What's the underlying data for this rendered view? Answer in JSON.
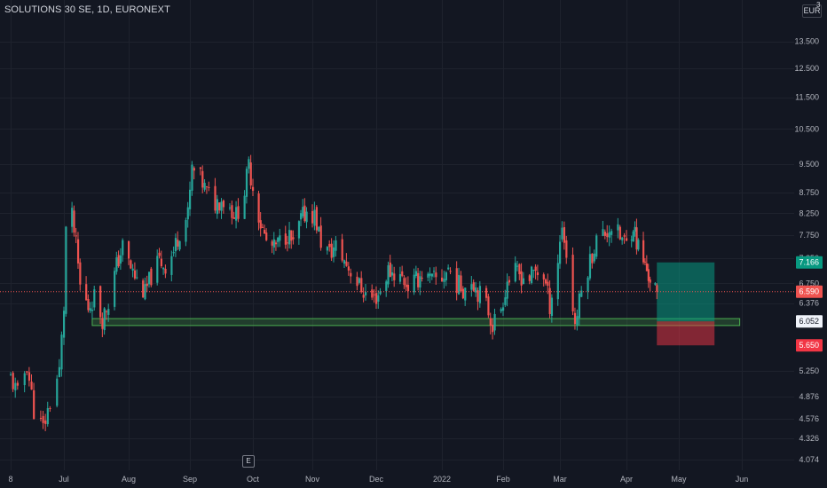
{
  "header": {
    "title": "SOLUTIONS 30 SE, 1D, EURONEXT",
    "currency": "EUR",
    "currency_index": "3"
  },
  "event_marker": "E",
  "colors": {
    "background": "#131722",
    "grid": "#1e222d",
    "up": "#26a69a",
    "down": "#ef5350",
    "axis_text": "#b2b5be",
    "zone_fill": "rgba(76,175,80,0.25)",
    "zone_border": "#4caf50",
    "target_fill": "rgba(8,153,129,0.55)",
    "stop_fill": "rgba(242,54,69,0.5)"
  },
  "chart_data": {
    "type": "candlestick",
    "title": "SOLUTIONS 30 SE, 1D, EURONEXT",
    "y_scale": "log",
    "ylim": [
      3.95,
      15.2
    ],
    "grid": true,
    "y_ticks": [
      "13.500",
      "12.500",
      "11.500",
      "10.500",
      "9.500",
      "8.750",
      "8.250",
      "7.750",
      "7.250",
      "6.750",
      "6.376",
      "5.250",
      "4.876",
      "4.576",
      "4.326",
      "4.074"
    ],
    "x_ticks": [
      "8",
      "Jul",
      "Aug",
      "Sep",
      "Oct",
      "Nov",
      "Dec",
      "2022",
      "Feb",
      "Mar",
      "Apr",
      "May",
      "Jun"
    ],
    "x_dates": [
      "2021-06-08",
      "2021-07-01",
      "2021-08-02",
      "2021-09-01",
      "2021-10-01",
      "2021-11-01",
      "2021-12-01",
      "2022-01-03",
      "2022-02-01",
      "2022-03-01",
      "2022-04-01",
      "2022-05-02",
      "2022-06-01"
    ],
    "price_labels": [
      {
        "label": "7.166",
        "value": 7.166,
        "kind": "target"
      },
      {
        "label": "6.590",
        "value": 6.59,
        "kind": "last"
      },
      {
        "label": "6.052",
        "value": 6.052,
        "kind": "zone"
      },
      {
        "label": "5.650",
        "value": 5.65,
        "kind": "stop"
      }
    ],
    "close_series": [
      [
        "2021-06-08",
        5.15
      ],
      [
        "2021-06-11",
        4.9
      ],
      [
        "2021-06-15",
        5.35
      ],
      [
        "2021-06-18",
        4.7
      ],
      [
        "2021-06-22",
        4.45
      ],
      [
        "2021-06-25",
        4.8
      ],
      [
        "2021-06-29",
        5.25
      ],
      [
        "2021-07-01",
        6.3
      ],
      [
        "2021-07-02",
        7.9
      ],
      [
        "2021-07-05",
        8.15
      ],
      [
        "2021-07-07",
        7.5
      ],
      [
        "2021-07-09",
        6.7
      ],
      [
        "2021-07-13",
        6.3
      ],
      [
        "2021-07-16",
        6.5
      ],
      [
        "2021-07-20",
        6.1
      ],
      [
        "2021-07-23",
        6.4
      ],
      [
        "2021-07-27",
        7.1
      ],
      [
        "2021-07-30",
        7.5
      ],
      [
        "2021-08-03",
        7.05
      ],
      [
        "2021-08-06",
        6.8
      ],
      [
        "2021-08-10",
        6.55
      ],
      [
        "2021-08-13",
        6.9
      ],
      [
        "2021-08-17",
        7.2
      ],
      [
        "2021-08-20",
        7.1
      ],
      [
        "2021-08-24",
        7.4
      ],
      [
        "2021-08-27",
        7.85
      ],
      [
        "2021-08-31",
        8.2
      ],
      [
        "2021-09-02",
        9.35
      ],
      [
        "2021-09-06",
        9.1
      ],
      [
        "2021-09-09",
        8.75
      ],
      [
        "2021-09-13",
        8.5
      ],
      [
        "2021-09-16",
        8.6
      ],
      [
        "2021-09-20",
        8.4
      ],
      [
        "2021-09-23",
        8.2
      ],
      [
        "2021-09-27",
        8.8
      ],
      [
        "2021-09-29",
        9.45
      ],
      [
        "2021-10-01",
        8.9
      ],
      [
        "2021-10-05",
        8.0
      ],
      [
        "2021-10-08",
        7.6
      ],
      [
        "2021-10-12",
        7.45
      ],
      [
        "2021-10-15",
        7.6
      ],
      [
        "2021-10-19",
        7.8
      ],
      [
        "2021-10-22",
        7.5
      ],
      [
        "2021-10-26",
        8.1
      ],
      [
        "2021-10-29",
        8.3
      ],
      [
        "2021-11-02",
        8.2
      ],
      [
        "2021-11-05",
        7.6
      ],
      [
        "2021-11-09",
        7.35
      ],
      [
        "2021-11-12",
        7.5
      ],
      [
        "2021-11-16",
        7.2
      ],
      [
        "2021-11-19",
        7.0
      ],
      [
        "2021-11-23",
        6.7
      ],
      [
        "2021-11-26",
        6.55
      ],
      [
        "2021-11-30",
        6.45
      ],
      [
        "2021-12-03",
        6.6
      ],
      [
        "2021-12-07",
        7.0
      ],
      [
        "2021-12-10",
        6.95
      ],
      [
        "2021-12-14",
        6.85
      ],
      [
        "2021-12-17",
        6.7
      ],
      [
        "2021-12-21",
        6.8
      ],
      [
        "2021-12-24",
        6.95
      ],
      [
        "2021-12-28",
        6.8
      ],
      [
        "2022-01-03",
        6.85
      ],
      [
        "2022-01-06",
        7.05
      ],
      [
        "2022-01-10",
        6.75
      ],
      [
        "2022-01-13",
        6.65
      ],
      [
        "2022-01-17",
        6.85
      ],
      [
        "2022-01-20",
        6.6
      ],
      [
        "2022-01-24",
        6.35
      ],
      [
        "2022-01-27",
        6.0
      ],
      [
        "2022-01-31",
        6.3
      ],
      [
        "2022-02-03",
        6.8
      ],
      [
        "2022-02-07",
        6.95
      ],
      [
        "2022-02-10",
        6.9
      ],
      [
        "2022-02-14",
        6.85
      ],
      [
        "2022-02-17",
        7.0
      ],
      [
        "2022-02-21",
        6.9
      ],
      [
        "2022-02-24",
        6.35
      ],
      [
        "2022-02-28",
        7.2
      ],
      [
        "2022-03-02",
        8.0
      ],
      [
        "2022-03-04",
        7.3
      ],
      [
        "2022-03-08",
        6.0
      ],
      [
        "2022-03-11",
        6.6
      ],
      [
        "2022-03-15",
        7.2
      ],
      [
        "2022-03-18",
        7.65
      ],
      [
        "2022-03-22",
        7.8
      ],
      [
        "2022-03-25",
        7.95
      ],
      [
        "2022-03-29",
        7.7
      ],
      [
        "2022-04-01",
        7.55
      ],
      [
        "2022-04-05",
        8.0
      ],
      [
        "2022-04-07",
        7.6
      ],
      [
        "2022-04-11",
        7.2
      ],
      [
        "2022-04-14",
        6.9
      ],
      [
        "2022-04-19",
        6.59
      ]
    ],
    "support_zone": {
      "from": "2021-07-15",
      "to": "2022-05-31",
      "low": 5.98,
      "high": 6.1
    },
    "position": {
      "type": "long",
      "from": "2022-04-19",
      "to": "2022-05-19",
      "entry": 6.052,
      "target": 7.166,
      "stop": 5.65
    }
  }
}
